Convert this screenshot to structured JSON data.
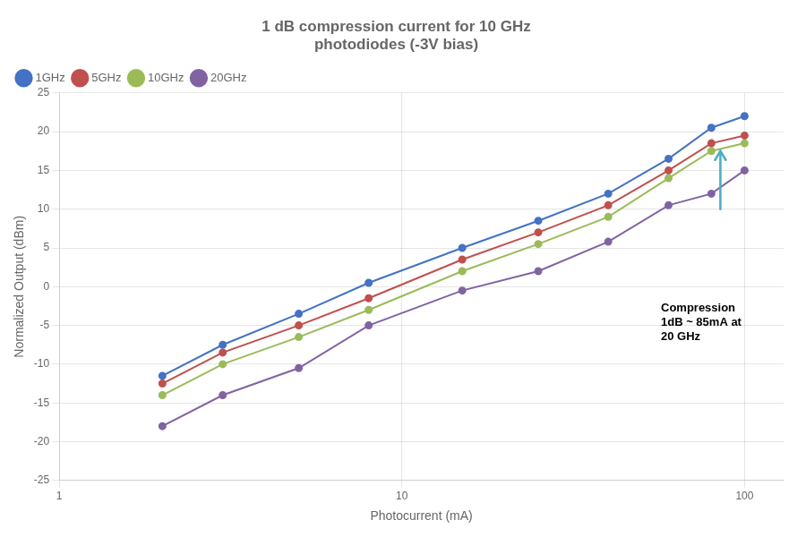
{
  "chart_data": {
    "type": "line",
    "title": "1 dB compression current for 10 GHz\nphotodiodes (-3V bias)",
    "x_label": "Photocurrent (mA)",
    "y_label": "Normalized Output (dBm)",
    "log": "x",
    "xlim": [
      1,
      130
    ],
    "xticks": [
      1,
      10,
      100
    ],
    "ylim": [
      -25,
      25
    ],
    "yticks": [
      -25,
      -20,
      -15,
      -10,
      -5,
      0,
      5,
      10,
      15,
      20,
      25
    ],
    "grid": true,
    "legend": "upper left",
    "marker": "circle",
    "series": [
      {
        "name": "1GHz",
        "color": "#4472C4",
        "x": [
          2,
          3,
          5,
          8,
          15,
          25,
          40,
          60,
          80,
          100
        ],
        "values": [
          -11.5,
          -7.5,
          -3.5,
          0.5,
          5,
          8.5,
          12,
          16.5,
          20.5,
          22
        ]
      },
      {
        "name": "5GHz",
        "color": "#C0504D",
        "x": [
          2,
          3,
          5,
          8,
          15,
          25,
          40,
          60,
          80,
          100
        ],
        "values": [
          -12.5,
          -8.5,
          -5,
          -1.5,
          3.5,
          7,
          10.5,
          15,
          18.5,
          19.5
        ]
      },
      {
        "name": "10GHz",
        "color": "#9BBB59",
        "x": [
          2,
          3,
          5,
          8,
          15,
          25,
          40,
          60,
          80,
          100
        ],
        "values": [
          -14,
          -10,
          -6.5,
          -3,
          2,
          5.5,
          9,
          14,
          17.5,
          18.5
        ]
      },
      {
        "name": "20GHz",
        "color": "#8064A2",
        "x": [
          2,
          3,
          5,
          8,
          15,
          25,
          40,
          60,
          80,
          100
        ],
        "values": [
          -18,
          -14,
          -10.5,
          -5,
          -0.5,
          2,
          5.8,
          10.5,
          12,
          15
        ]
      }
    ],
    "annotation": {
      "text": "Compression\n1dB ~ 85mA at\n20 GHz",
      "x": 57,
      "y": -2
    },
    "arrow": {
      "x": 85,
      "from": 10,
      "to": 17.5,
      "color": "#4BACC6"
    }
  }
}
